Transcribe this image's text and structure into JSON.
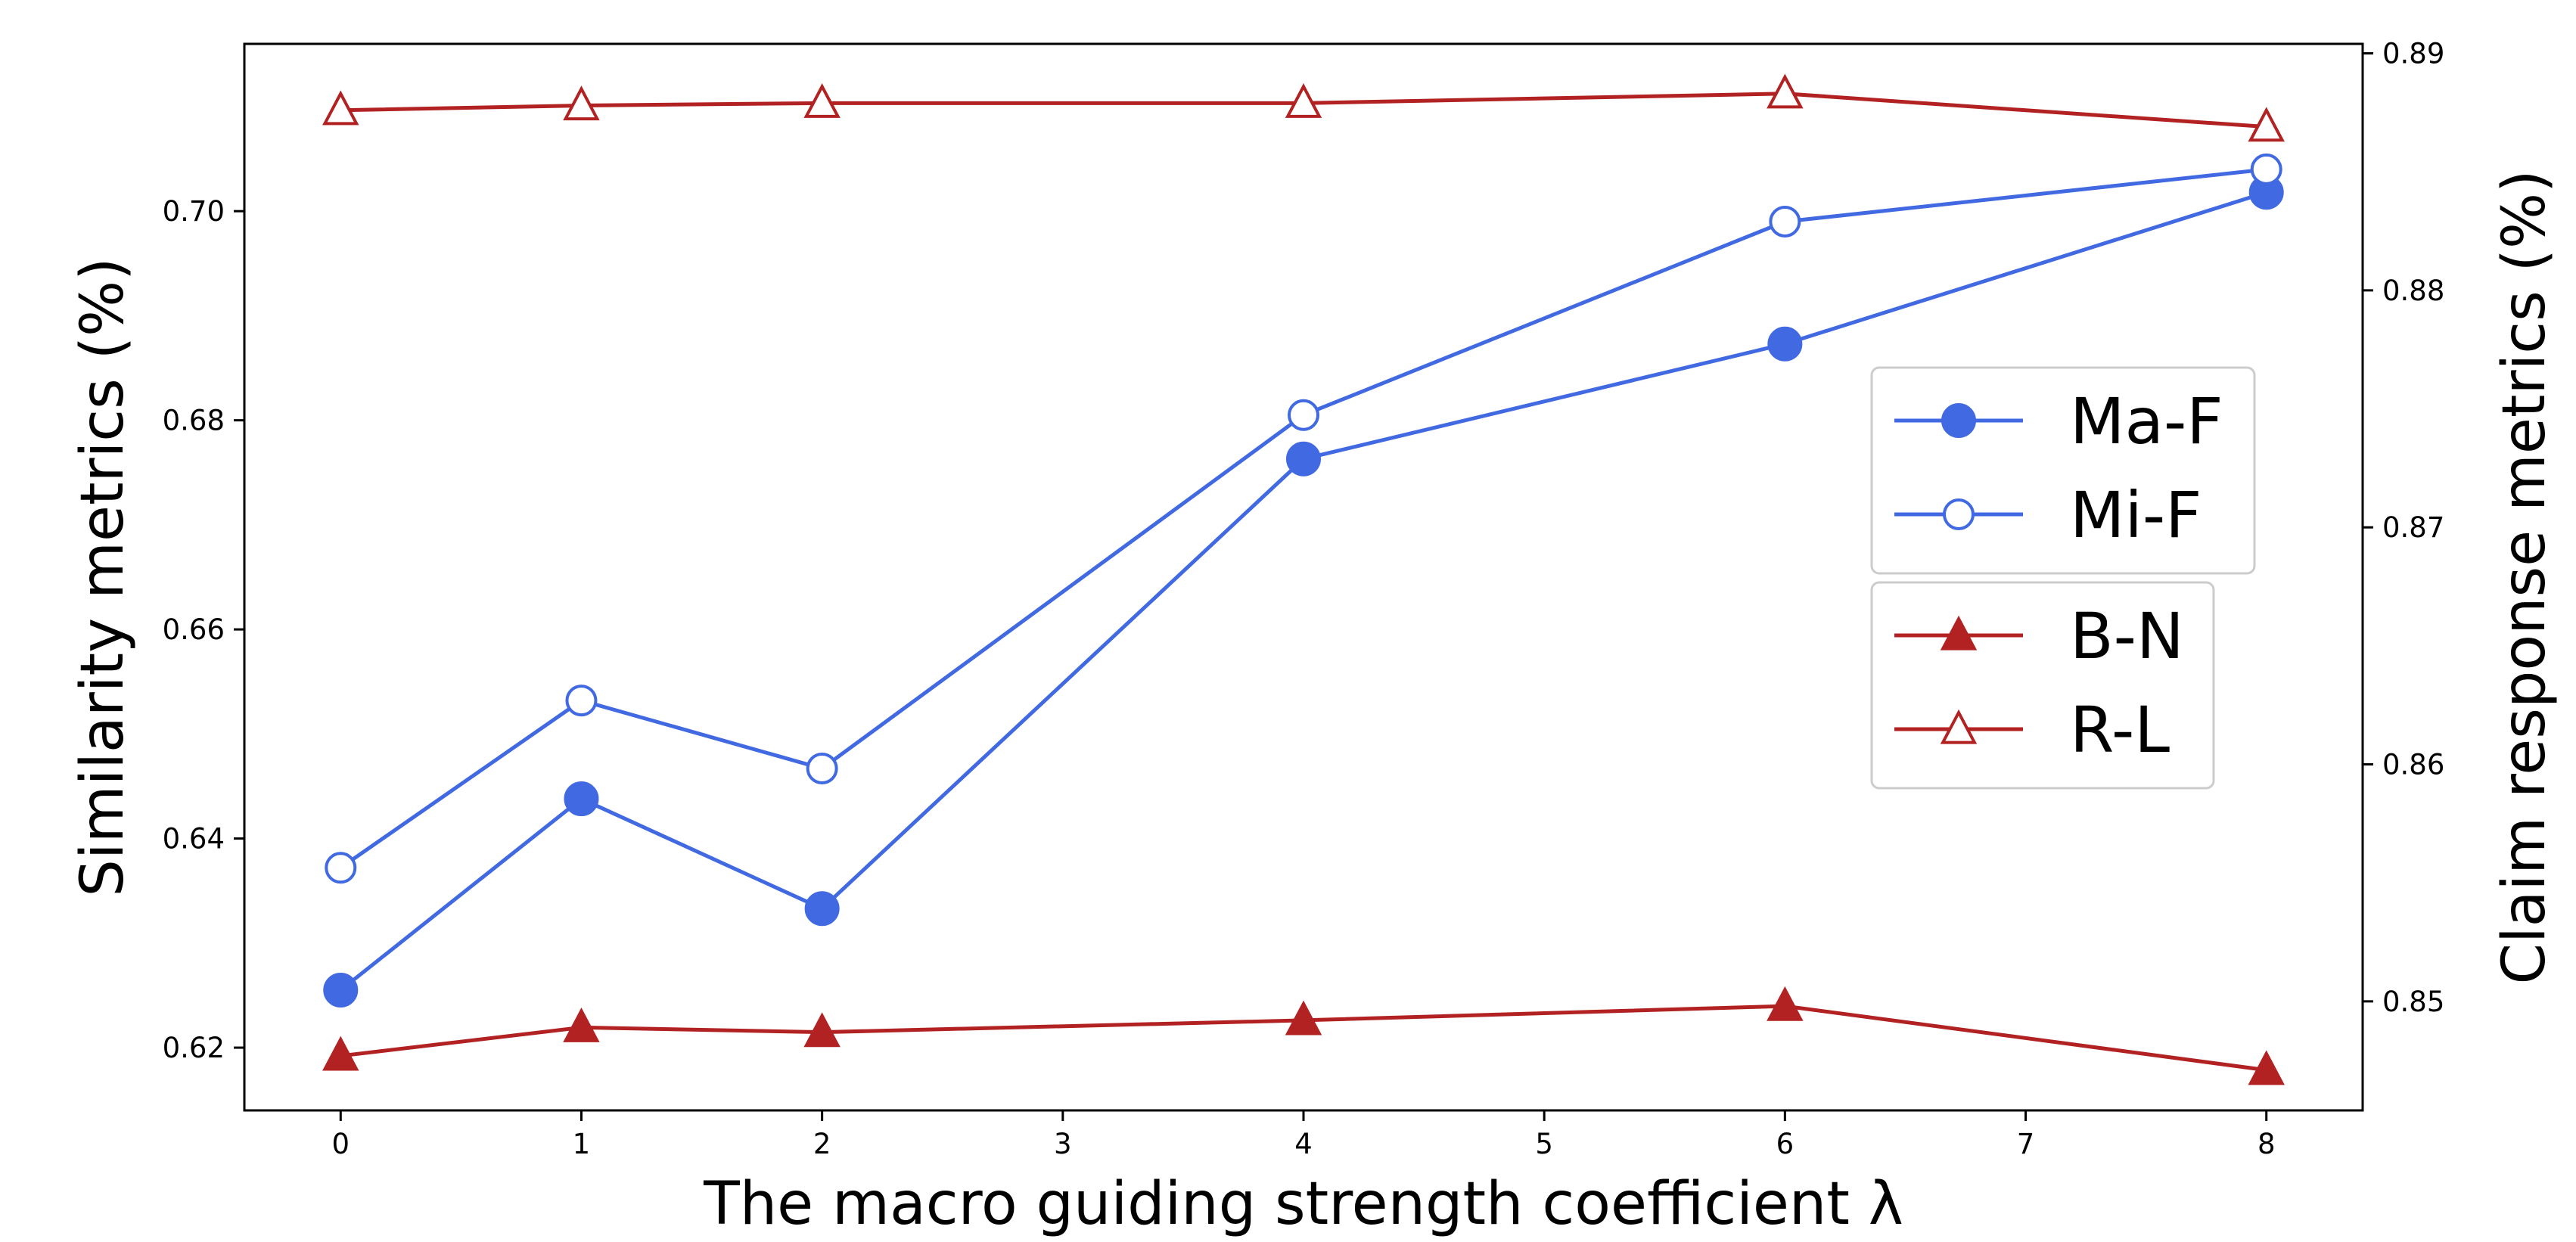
{
  "chart_data": {
    "type": "line",
    "title": "",
    "xlabel": "The macro guiding strength coefficient λ",
    "ylabel_left": "Similarity metrics (%)",
    "ylabel_right": "Claim response metrics (%)",
    "xlim": [
      -0.4,
      8.4
    ],
    "ylim_left": [
      0.614,
      0.716
    ],
    "ylim_right": [
      0.8454,
      0.8904
    ],
    "x_ticks": [
      "0",
      "1",
      "2",
      "3",
      "4",
      "5",
      "6",
      "7",
      "8"
    ],
    "y_ticks_left": [
      "0.62",
      "0.64",
      "0.66",
      "0.68",
      "0.70"
    ],
    "y_ticks_right": [
      "0.85",
      "0.86",
      "0.87",
      "0.88",
      "0.89"
    ],
    "x": [
      0,
      1,
      2,
      4,
      6,
      8
    ],
    "series": [
      {
        "name": "Ma-F",
        "axis": "left",
        "color": "#4169E1",
        "marker": "filled-circle",
        "values": [
          0.6255,
          0.6438,
          0.6333,
          0.6763,
          0.6873,
          0.7018
        ]
      },
      {
        "name": "Mi-F",
        "axis": "left",
        "color": "#4169E1",
        "marker": "open-circle",
        "values": [
          0.6372,
          0.6532,
          0.6467,
          0.6805,
          0.699,
          0.704
        ]
      },
      {
        "name": "B-N",
        "axis": "right",
        "color": "#B22222",
        "marker": "filled-triangle",
        "values": [
          0.8477,
          0.8489,
          0.8487,
          0.8492,
          0.8498,
          0.8471
        ]
      },
      {
        "name": "R-L",
        "axis": "right",
        "color": "#B22222",
        "marker": "open-triangle",
        "values": [
          0.8876,
          0.8878,
          0.8879,
          0.8879,
          0.8883,
          0.8869
        ]
      }
    ],
    "legend_groups": [
      [
        "Ma-F",
        "Mi-F"
      ],
      [
        "B-N",
        "R-L"
      ]
    ],
    "legend_position": "center-right",
    "grid": false
  }
}
